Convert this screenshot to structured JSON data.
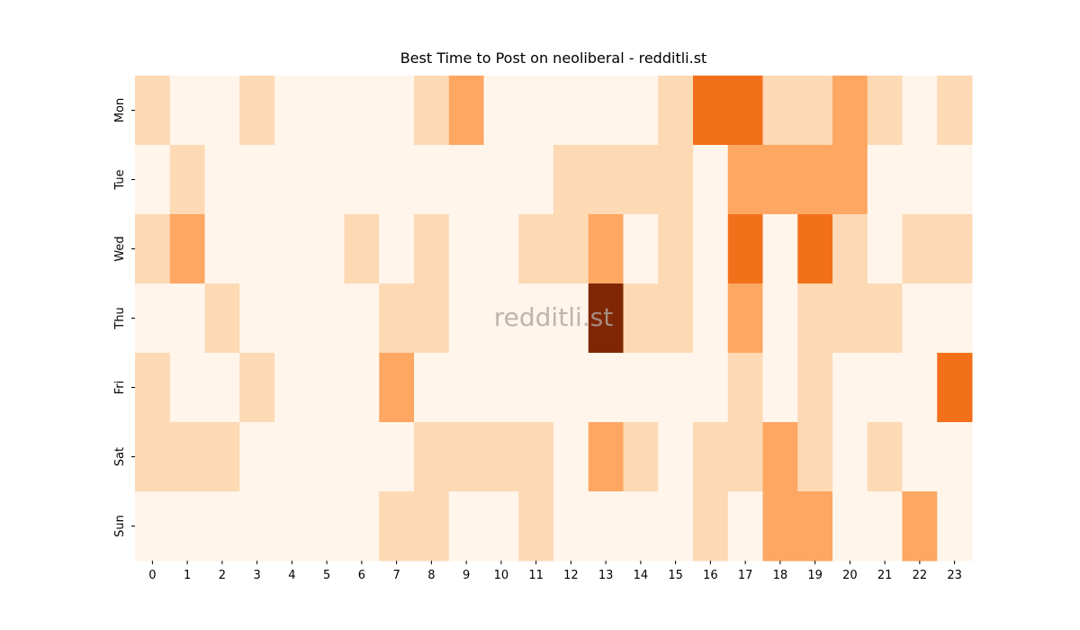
{
  "chart_data": {
    "type": "heatmap",
    "title": "Best Time to Post on neoliberal - redditli.st",
    "watermark": "redditli.st",
    "x": [
      0,
      1,
      2,
      3,
      4,
      5,
      6,
      7,
      8,
      9,
      10,
      11,
      12,
      13,
      14,
      15,
      16,
      17,
      18,
      19,
      20,
      21,
      22,
      23
    ],
    "categories": [
      "Mon",
      "Tue",
      "Wed",
      "Thu",
      "Fri",
      "Sat",
      "Sun"
    ],
    "z": [
      [
        1,
        0,
        0,
        1,
        0,
        0,
        0,
        0,
        1,
        2,
        0,
        0,
        0,
        0,
        0,
        1,
        3,
        3,
        1,
        1,
        2,
        1,
        0,
        1
      ],
      [
        0,
        1,
        0,
        0,
        0,
        0,
        0,
        0,
        0,
        0,
        0,
        0,
        1,
        1,
        1,
        1,
        0,
        2,
        2,
        2,
        2,
        0,
        0,
        0
      ],
      [
        1,
        2,
        0,
        0,
        0,
        0,
        1,
        0,
        1,
        0,
        0,
        1,
        1,
        2,
        0,
        1,
        0,
        3,
        0,
        3,
        1,
        0,
        1,
        1
      ],
      [
        0,
        0,
        1,
        0,
        0,
        0,
        0,
        1,
        1,
        0,
        0,
        0,
        0,
        5,
        1,
        1,
        0,
        2,
        0,
        1,
        1,
        1,
        0,
        0
      ],
      [
        1,
        0,
        0,
        1,
        0,
        0,
        0,
        2,
        0,
        0,
        0,
        0,
        0,
        0,
        0,
        0,
        0,
        1,
        0,
        1,
        0,
        0,
        0,
        3
      ],
      [
        1,
        1,
        1,
        0,
        0,
        0,
        0,
        0,
        1,
        1,
        1,
        1,
        0,
        2,
        1,
        0,
        1,
        1,
        2,
        1,
        0,
        1,
        0,
        0
      ],
      [
        0,
        0,
        0,
        0,
        0,
        0,
        0,
        1,
        1,
        0,
        0,
        1,
        0,
        0,
        0,
        0,
        1,
        0,
        2,
        2,
        0,
        0,
        2,
        0
      ]
    ],
    "zlim": [
      0,
      5
    ],
    "colormap": [
      "#fff5eb",
      "#fee6ce",
      "#fdd0a2",
      "#fdae6b",
      "#fd8d3c",
      "#f16913",
      "#d94801",
      "#a63603",
      "#7f2704"
    ]
  }
}
